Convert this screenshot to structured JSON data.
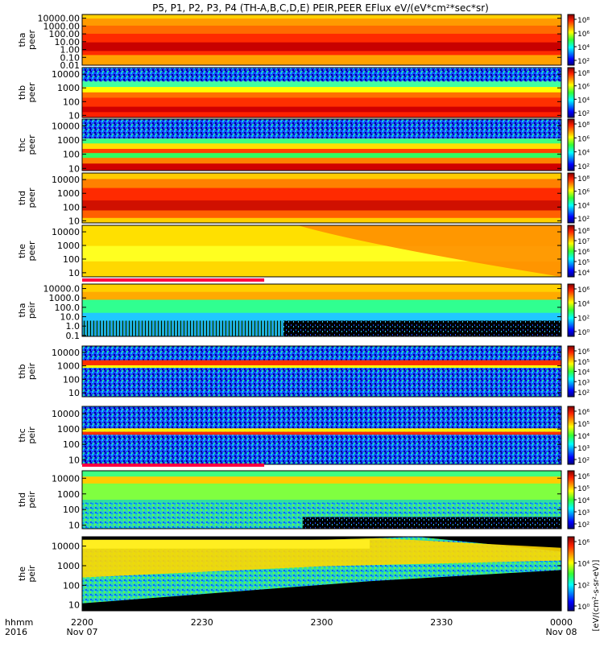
{
  "title": "P5, P1, P2, P3, P4 (TH-A,B,C,D,E) PEIR,PEER EFlux eV/(eV*cm²*sec*sr)",
  "footer": {
    "row_label_1": "hhmm",
    "row_label_2": "2016",
    "ticks": [
      {
        "time": "2200",
        "date": "Nov 07"
      },
      {
        "time": "2230",
        "date": ""
      },
      {
        "time": "2300",
        "date": ""
      },
      {
        "time": "2330",
        "date": ""
      },
      {
        "time": "0000",
        "date": "Nov 08"
      }
    ]
  },
  "colorbar_unit_label": "[eV/(cm²-s-sr-eV)]",
  "chart_data": [
    {
      "type": "heatmap",
      "probe": "tha",
      "species": "peer",
      "ylog": true,
      "ylim": [
        0.01,
        30000
      ],
      "yticks": [
        "10000.00",
        "1000.00",
        "100.00",
        "10.00",
        "1.00",
        "0.10",
        "0.01"
      ],
      "cbar_ticks": [
        "10⁸",
        "10⁶",
        "10⁴",
        "10²"
      ]
    },
    {
      "type": "heatmap",
      "probe": "thb",
      "species": "peer",
      "ylog": true,
      "ylim": [
        7,
        30000
      ],
      "yticks": [
        "10000",
        "1000",
        "100",
        "10"
      ],
      "cbar_ticks": [
        "10⁸",
        "10⁶",
        "10⁴",
        "10²"
      ]
    },
    {
      "type": "heatmap",
      "probe": "thc",
      "species": "peer",
      "ylog": true,
      "ylim": [
        7,
        30000
      ],
      "yticks": [
        "10000",
        "1000",
        "100",
        "10"
      ],
      "cbar_ticks": [
        "10⁸",
        "10⁶",
        "10⁴",
        "10²"
      ]
    },
    {
      "type": "heatmap",
      "probe": "thd",
      "species": "peer",
      "ylog": true,
      "ylim": [
        7,
        30000
      ],
      "yticks": [
        "10000",
        "1000",
        "100",
        "10"
      ],
      "cbar_ticks": [
        "10⁸",
        "10⁶",
        "10⁴",
        "10²"
      ]
    },
    {
      "type": "heatmap",
      "probe": "the",
      "species": "peer",
      "ylog": true,
      "ylim": [
        5,
        30000
      ],
      "yticks": [
        "10000",
        "1000",
        "100",
        "10"
      ],
      "cbar_ticks": [
        "10⁸",
        "10⁷",
        "10⁶",
        "10⁵",
        "10⁴"
      ]
    },
    {
      "type": "heatmap",
      "probe": "tha",
      "species": "peir",
      "ylog": true,
      "ylim": [
        0.08,
        30000
      ],
      "yticks": [
        "10000.0",
        "1000.0",
        "100.0",
        "10.0",
        "1.0",
        "0.1"
      ],
      "cbar_ticks": [
        "10⁶",
        "10⁴",
        "10²",
        "10⁰"
      ]
    },
    {
      "type": "heatmap",
      "probe": "thb",
      "species": "peir",
      "ylog": true,
      "ylim": [
        5,
        30000
      ],
      "yticks": [
        "10000",
        "1000",
        "100",
        "10"
      ],
      "cbar_ticks": [
        "10⁶",
        "10⁵",
        "10⁴",
        "10³",
        "10²"
      ]
    },
    {
      "type": "heatmap",
      "probe": "thc",
      "species": "peir",
      "ylog": true,
      "ylim": [
        5,
        30000
      ],
      "yticks": [
        "10000",
        "1000",
        "100",
        "10"
      ],
      "cbar_ticks": [
        "10⁶",
        "10⁵",
        "10⁴",
        "10³",
        "10²"
      ]
    },
    {
      "type": "heatmap",
      "probe": "thd",
      "species": "peir",
      "ylog": true,
      "ylim": [
        6,
        30000
      ],
      "yticks": [
        "10000",
        "1000",
        "100",
        "10"
      ],
      "cbar_ticks": [
        "10⁶",
        "10⁵",
        "10⁴",
        "10³",
        "10²"
      ]
    },
    {
      "type": "heatmap",
      "probe": "the",
      "species": "peir",
      "ylog": true,
      "ylim": [
        5,
        30000
      ],
      "yticks": [
        "10000",
        "1000",
        "100",
        "10"
      ],
      "cbar_ticks": [
        "10⁶",
        "10⁴",
        "10²",
        "10⁰"
      ]
    }
  ]
}
